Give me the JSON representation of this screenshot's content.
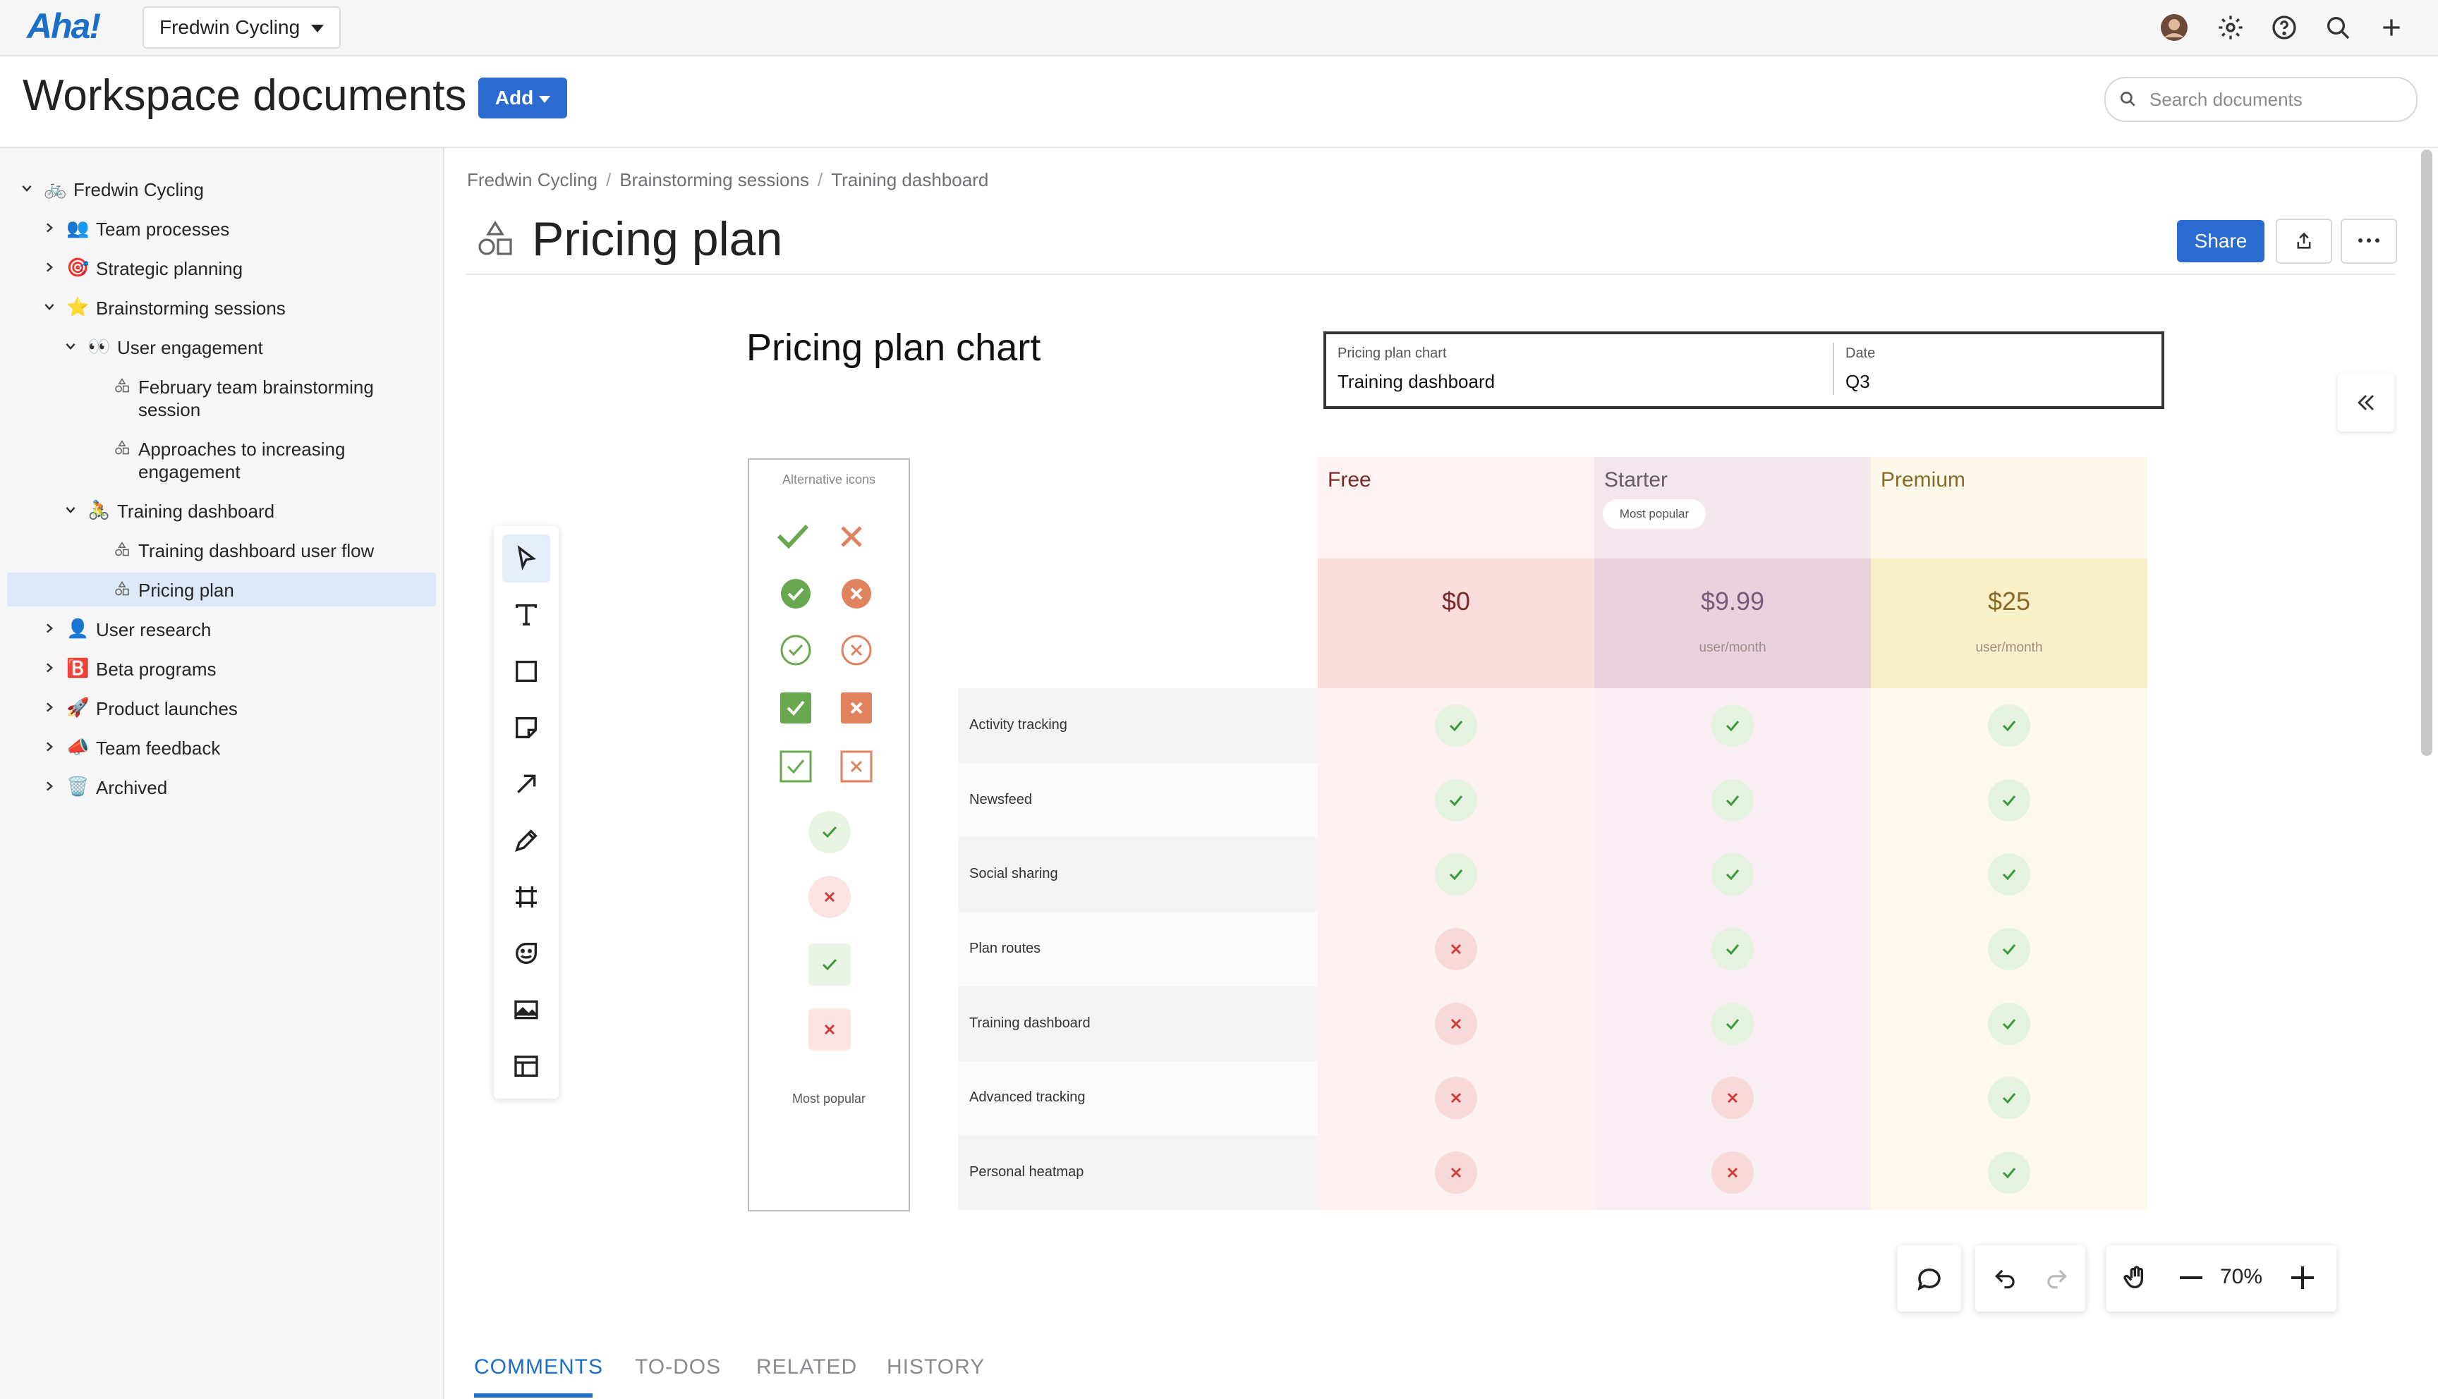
{
  "app": {
    "logo": "Aha!",
    "workspace": "Fredwin Cycling"
  },
  "header": {
    "title": "Workspace documents",
    "add_label": "Add",
    "search_placeholder": "Search documents"
  },
  "sidebar": {
    "items": [
      {
        "label": "Fredwin Cycling",
        "emoji": "🚲"
      },
      {
        "label": "Team processes",
        "emoji": "👥"
      },
      {
        "label": "Strategic planning",
        "emoji": "🎯"
      },
      {
        "label": "Brainstorming sessions",
        "emoji": "⭐"
      },
      {
        "label": "User engagement",
        "emoji": "👀"
      },
      {
        "label": "February team brainstorming",
        "label2": "session"
      },
      {
        "label": "Approaches to increasing",
        "label2": "engagement"
      },
      {
        "label": "Training dashboard",
        "emoji": "🚴"
      },
      {
        "label": "Training dashboard user flow"
      },
      {
        "label": "Pricing plan"
      },
      {
        "label": "User research",
        "emoji": "👤"
      },
      {
        "label": "Beta programs",
        "emoji": "🅱️"
      },
      {
        "label": "Product launches",
        "emoji": "🚀"
      },
      {
        "label": "Team feedback",
        "emoji": "📣"
      },
      {
        "label": "Archived",
        "emoji": "🗑️"
      }
    ]
  },
  "document": {
    "breadcrumb": [
      "Fredwin Cycling",
      "Brainstorming sessions",
      "Training dashboard"
    ],
    "title": "Pricing plan",
    "share_label": "Share"
  },
  "board": {
    "title": "Pricing plan chart",
    "meta": {
      "label1": "Pricing plan chart",
      "value1": "Training dashboard",
      "label2": "Date",
      "value2": "Q3"
    },
    "alt_icons_title": "Alternative icons",
    "alt_icons_footer": "Most popular",
    "plans": [
      {
        "name": "Free",
        "price": "$0",
        "per": ""
      },
      {
        "name": "Starter",
        "price": "$9.99",
        "per": "user/month",
        "badge": "Most popular"
      },
      {
        "name": "Premium",
        "price": "$25",
        "per": "user/month"
      }
    ],
    "features": [
      {
        "name": "Activity tracking",
        "free": "yes",
        "starter": "yes",
        "premium": "yes"
      },
      {
        "name": "Newsfeed",
        "free": "yes",
        "starter": "yes",
        "premium": "yes"
      },
      {
        "name": "Social sharing",
        "free": "yes",
        "starter": "yes",
        "premium": "yes"
      },
      {
        "name": "Plan routes",
        "free": "no",
        "starter": "yes",
        "premium": "yes"
      },
      {
        "name": "Training dashboard",
        "free": "no",
        "starter": "yes",
        "premium": "yes"
      },
      {
        "name": "Advanced tracking",
        "free": "no",
        "starter": "no",
        "premium": "yes"
      },
      {
        "name": "Personal heatmap",
        "free": "no",
        "starter": "no",
        "premium": "yes"
      }
    ],
    "colors": {
      "free_header": "#fdf3f3",
      "free_price": "#f9dcdc",
      "starter_header": "#f3e6ec",
      "starter_price": "#e9d2de",
      "premium_header": "#fdf9ea",
      "premium_price": "#f9efc9",
      "yes": "#3c9a3c",
      "no": "#d13b3b"
    }
  },
  "controls": {
    "zoom": "70%"
  },
  "tabs": [
    "COMMENTS",
    "TO-DOS",
    "RELATED",
    "HISTORY"
  ]
}
